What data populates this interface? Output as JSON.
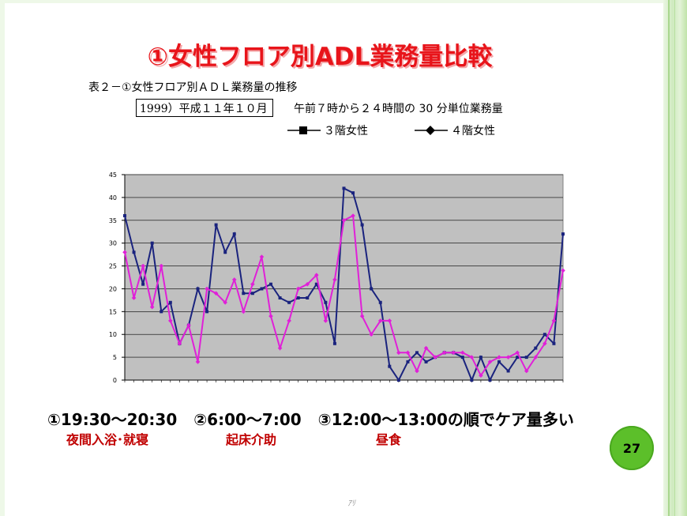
{
  "title": "①女性フロア別ADL業務量比較",
  "subtitle": "表２－①女性フロア別ＡＤＬ業務量の推移",
  "period": "1999）平成１１年１０月",
  "period_note": "午前７時から２４時間の 30 分単位業務量",
  "legend": [
    {
      "label": "３階女性",
      "marker": "square",
      "color": "#1a237e"
    },
    {
      "label": "４階女性",
      "marker": "diamond",
      "color": "#e020d8"
    }
  ],
  "summary": {
    "items": [
      "①19:30～20:30",
      "②6:00～7:00",
      "③12:00～13:00の順でケア量多い"
    ],
    "sub_labels": [
      "夜間入浴･就寝",
      "起床介助",
      "昼食"
    ]
  },
  "page_number": "27",
  "footer_mark": "ｱﾘ",
  "chart_data": {
    "type": "line",
    "title": "",
    "xlabel": "",
    "ylabel": "",
    "ylim": [
      0,
      45
    ],
    "yticks": [
      0,
      5,
      10,
      15,
      20,
      25,
      30,
      35,
      40,
      45
    ],
    "grid": true,
    "plot_background": "#c0c0c0",
    "x": [
      1,
      2,
      3,
      4,
      5,
      6,
      7,
      8,
      9,
      10,
      11,
      12,
      13,
      14,
      15,
      16,
      17,
      18,
      19,
      20,
      21,
      22,
      23,
      24,
      25,
      26,
      27,
      28,
      29,
      30,
      31,
      32,
      33,
      34,
      35,
      36,
      37,
      38,
      39,
      40,
      41,
      42,
      43,
      44,
      45,
      46,
      47,
      48,
      49
    ],
    "series": [
      {
        "name": "３階女性",
        "color": "#1a237e",
        "values": [
          36,
          28,
          21,
          30,
          15,
          17,
          8,
          12,
          20,
          15,
          34,
          28,
          32,
          19,
          19,
          20,
          21,
          18,
          17,
          18,
          18,
          21,
          17,
          8,
          42,
          41,
          34,
          20,
          17,
          3,
          0,
          4,
          6,
          4,
          5,
          6,
          6,
          5,
          0,
          5,
          0,
          4,
          2,
          5,
          5,
          7,
          10,
          8,
          32
        ]
      },
      {
        "name": "４階女性",
        "color": "#e020d8",
        "values": [
          28,
          18,
          25,
          16,
          25,
          13,
          8,
          12,
          4,
          20,
          19,
          17,
          22,
          15,
          21,
          27,
          14,
          7,
          13,
          20,
          21,
          23,
          13,
          22,
          35,
          36,
          14,
          10,
          13,
          13,
          6,
          6,
          2,
          7,
          5,
          6,
          6,
          6,
          5,
          1,
          4,
          5,
          5,
          6,
          2,
          5,
          8,
          13,
          24
        ]
      }
    ]
  }
}
